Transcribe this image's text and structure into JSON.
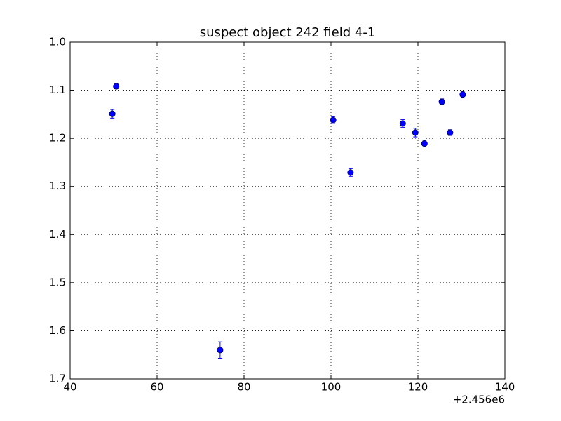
{
  "chart_data": {
    "type": "errorbar-scatter",
    "title": "suspect object 242 field 4-1",
    "x": [
      49.7,
      50.6,
      74.5,
      100.5,
      104.5,
      116.5,
      119.4,
      121.5,
      125.5,
      127.4,
      130.3
    ],
    "values": [
      1.149,
      1.092,
      1.64,
      1.162,
      1.271,
      1.169,
      1.188,
      1.211,
      1.124,
      1.188,
      1.109
    ],
    "errors": [
      0.009,
      0.005,
      0.017,
      0.007,
      0.008,
      0.008,
      0.009,
      0.007,
      0.006,
      0.006,
      0.007
    ],
    "color": "#0000ff",
    "xlim": [
      40,
      140
    ],
    "xticks": [
      40,
      60,
      80,
      100,
      120,
      140
    ],
    "x_offset_label": "+2.456e6",
    "ylim": [
      1.0,
      1.7
    ],
    "y_inverted": true,
    "yticks": [
      {
        "value": 1,
        "label": "1.0"
      },
      1.1,
      1.2,
      1.3,
      1.4,
      1.5,
      1.6,
      1.7
    ],
    "grid": true
  }
}
